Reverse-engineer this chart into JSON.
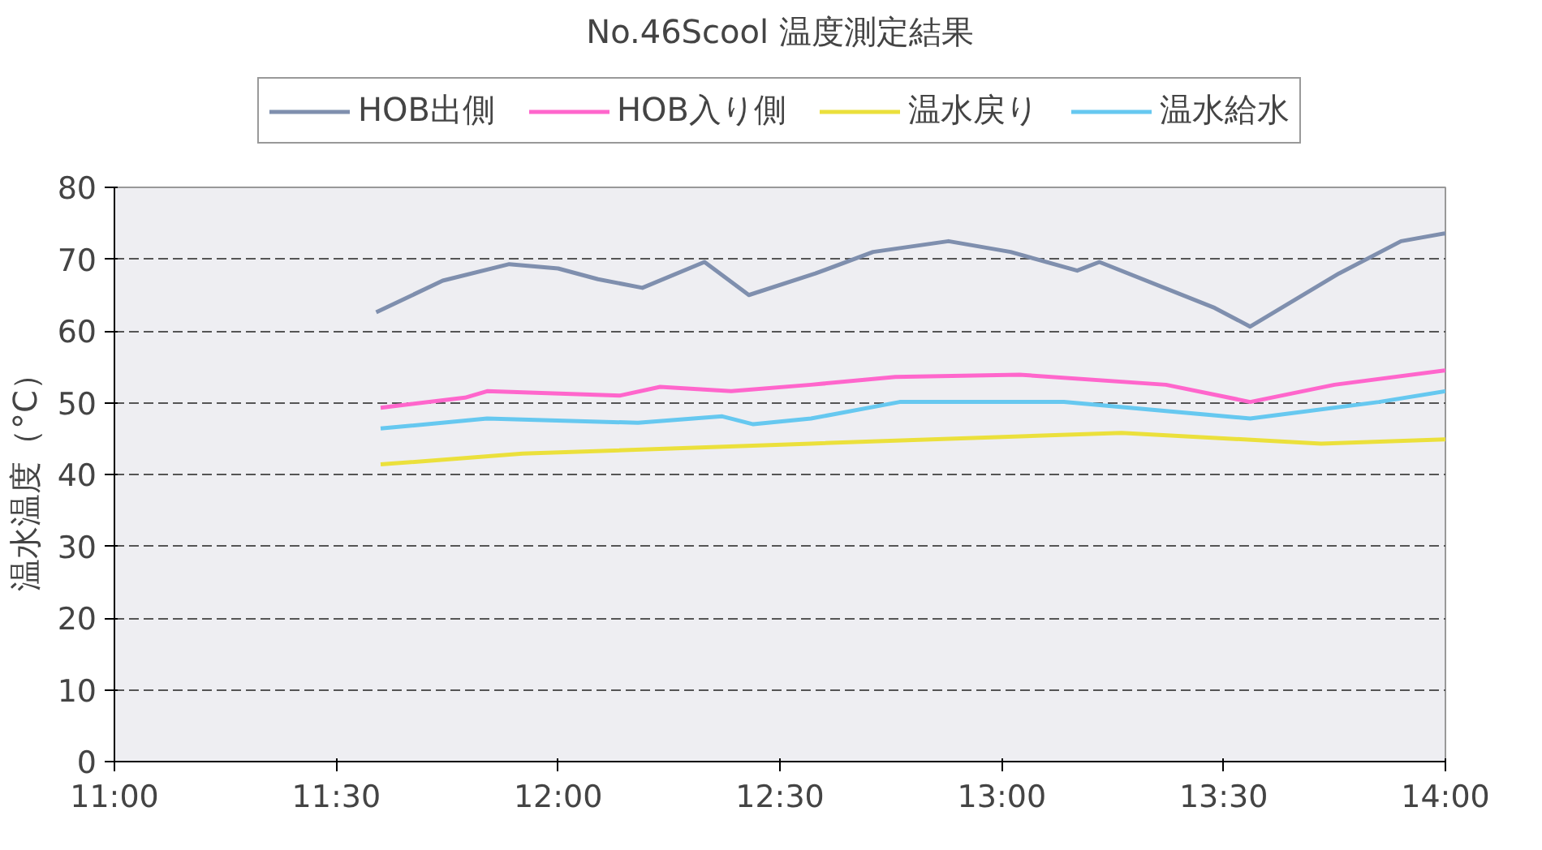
{
  "chart_data": {
    "type": "line",
    "title": "No.46Scool 温度測定結果",
    "ylabel": "温水温度（°C）",
    "xlim": [
      11,
      14
    ],
    "ylim": [
      0,
      80
    ],
    "xticks": [
      {
        "value": 11,
        "label": "11:00"
      },
      {
        "value": 11.5,
        "label": "11:30"
      },
      {
        "value": 12,
        "label": "12:00"
      },
      {
        "value": 12.5,
        "label": "12:30"
      },
      {
        "value": 13,
        "label": "13:00"
      },
      {
        "value": 13.5,
        "label": "13:30"
      },
      {
        "value": 14,
        "label": "14:00"
      }
    ],
    "yticks": [
      0,
      10,
      20,
      30,
      40,
      50,
      60,
      70,
      80
    ],
    "grid": "y",
    "legend": "top",
    "marker": "none",
    "line_style": "solid",
    "series": [
      {
        "name": "HOB出側",
        "color": "#7f8fae",
        "x": [
          11.59,
          11.74,
          11.89,
          12.0,
          12.09,
          12.19,
          12.33,
          12.43,
          12.58,
          12.71,
          12.88,
          13.02,
          13.17,
          13.22,
          13.48,
          13.56,
          13.76,
          13.9,
          14.0
        ],
        "values": [
          62.6,
          67,
          69.3,
          68.7,
          67.2,
          66,
          69.6,
          65,
          68,
          71,
          72.5,
          71,
          68.4,
          69.6,
          63.2,
          60.6,
          68,
          72.5,
          73.6
        ]
      },
      {
        "name": "HOB入り側",
        "color": "#ff66cc",
        "x": [
          11.6,
          11.79,
          11.84,
          12.14,
          12.23,
          12.39,
          12.57,
          12.76,
          13.04,
          13.37,
          13.56,
          13.75,
          14.0
        ],
        "values": [
          49.3,
          50.7,
          51.6,
          51,
          52.2,
          51.6,
          52.5,
          53.6,
          53.9,
          52.5,
          50.1,
          52.5,
          54.5
        ]
      },
      {
        "name": "温水戻り",
        "color": "#ebe03c",
        "x": [
          11.6,
          11.92,
          12.57,
          13.27,
          13.72,
          14.0
        ],
        "values": [
          41.4,
          42.9,
          44.3,
          45.8,
          44.3,
          44.9
        ]
      },
      {
        "name": "温水給水",
        "color": "#66c8f0",
        "x": [
          11.6,
          11.84,
          12.18,
          12.37,
          12.44,
          12.57,
          12.77,
          13.14,
          13.56,
          13.85,
          14.0
        ],
        "values": [
          46.4,
          47.8,
          47.2,
          48.1,
          47,
          47.8,
          50.1,
          50.1,
          47.8,
          50.1,
          51.6
        ]
      }
    ]
  }
}
